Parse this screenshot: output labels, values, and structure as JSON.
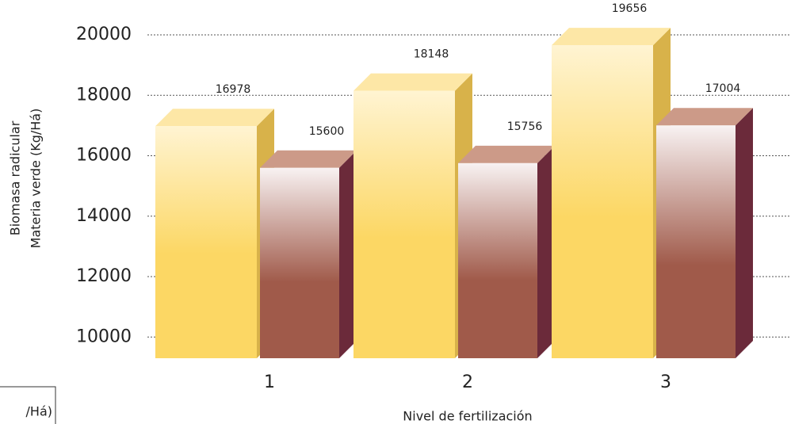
{
  "chart_data": {
    "type": "bar3d",
    "y_label_lines": [
      "Biomasa radicular",
      "Materia verde (Kg/Há)"
    ],
    "x_label": "Nivel de fertilización",
    "legend_fragment": "/Há)",
    "categories": [
      "1",
      "2",
      "3"
    ],
    "series": [
      {
        "color": "#fcd764",
        "values": [
          16978,
          18148,
          19656
        ]
      },
      {
        "color": "#a05a4a",
        "values": [
          15600,
          15756,
          17004
        ]
      }
    ],
    "ylim": [
      9300,
      20000
    ],
    "yticks": [
      10000,
      12000,
      14000,
      16000,
      18000,
      20000
    ],
    "grid": true
  }
}
